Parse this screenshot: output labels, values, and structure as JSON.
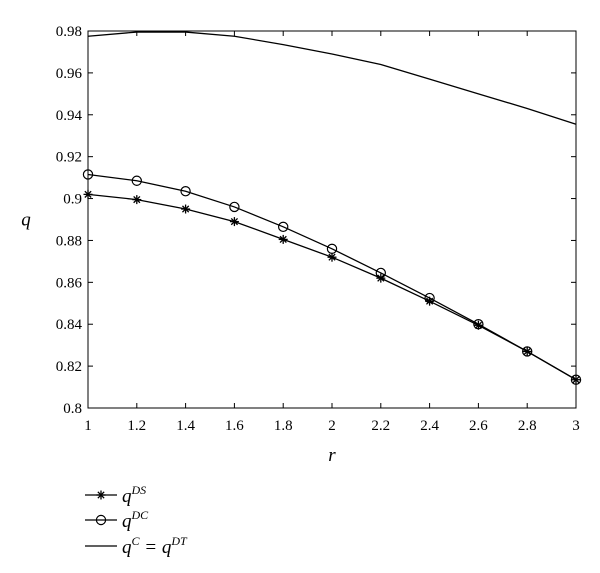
{
  "chart_data": {
    "type": "line",
    "xlabel": "r",
    "ylabel": "q",
    "xlim": [
      1,
      3
    ],
    "ylim": [
      0.8,
      0.98
    ],
    "x_ticks": [
      "1",
      "1.2",
      "1.4",
      "1.6",
      "1.8",
      "2",
      "2.2",
      "2.4",
      "2.6",
      "2.8",
      "3"
    ],
    "y_ticks": [
      "0.8",
      "0.82",
      "0.84",
      "0.86",
      "0.88",
      "0.9",
      "0.92",
      "0.94",
      "0.96",
      "0.98"
    ],
    "grid": false,
    "legend_position": "bottom-left",
    "series": [
      {
        "key": "ds",
        "legend_base": "q",
        "legend_sup": "DS",
        "marker": "star",
        "x": [
          1,
          1.2,
          1.4,
          1.6,
          1.8,
          2,
          2.2,
          2.4,
          2.6,
          2.8,
          3
        ],
        "y": [
          0.902,
          0.8995,
          0.895,
          0.889,
          0.8805,
          0.872,
          0.862,
          0.851,
          0.8395,
          0.827,
          0.8135
        ]
      },
      {
        "key": "dc",
        "legend_base": "q",
        "legend_sup": "DC",
        "marker": "circle",
        "x": [
          1,
          1.2,
          1.4,
          1.6,
          1.8,
          2,
          2.2,
          2.4,
          2.6,
          2.8,
          3
        ],
        "y": [
          0.9115,
          0.9085,
          0.9035,
          0.896,
          0.8865,
          0.876,
          0.8645,
          0.8525,
          0.84,
          0.827,
          0.8135
        ]
      },
      {
        "key": "c",
        "legend_base": "q",
        "legend_sup": "C",
        "legend_mid": " = q",
        "legend_sup2": "DT",
        "marker": "none",
        "x": [
          1,
          1.2,
          1.4,
          1.6,
          1.8,
          2,
          2.2,
          2.4,
          2.6,
          2.8,
          3
        ],
        "y": [
          0.9775,
          0.9795,
          0.9795,
          0.9775,
          0.9735,
          0.969,
          0.964,
          0.957,
          0.95,
          0.943,
          0.9355
        ]
      }
    ]
  }
}
